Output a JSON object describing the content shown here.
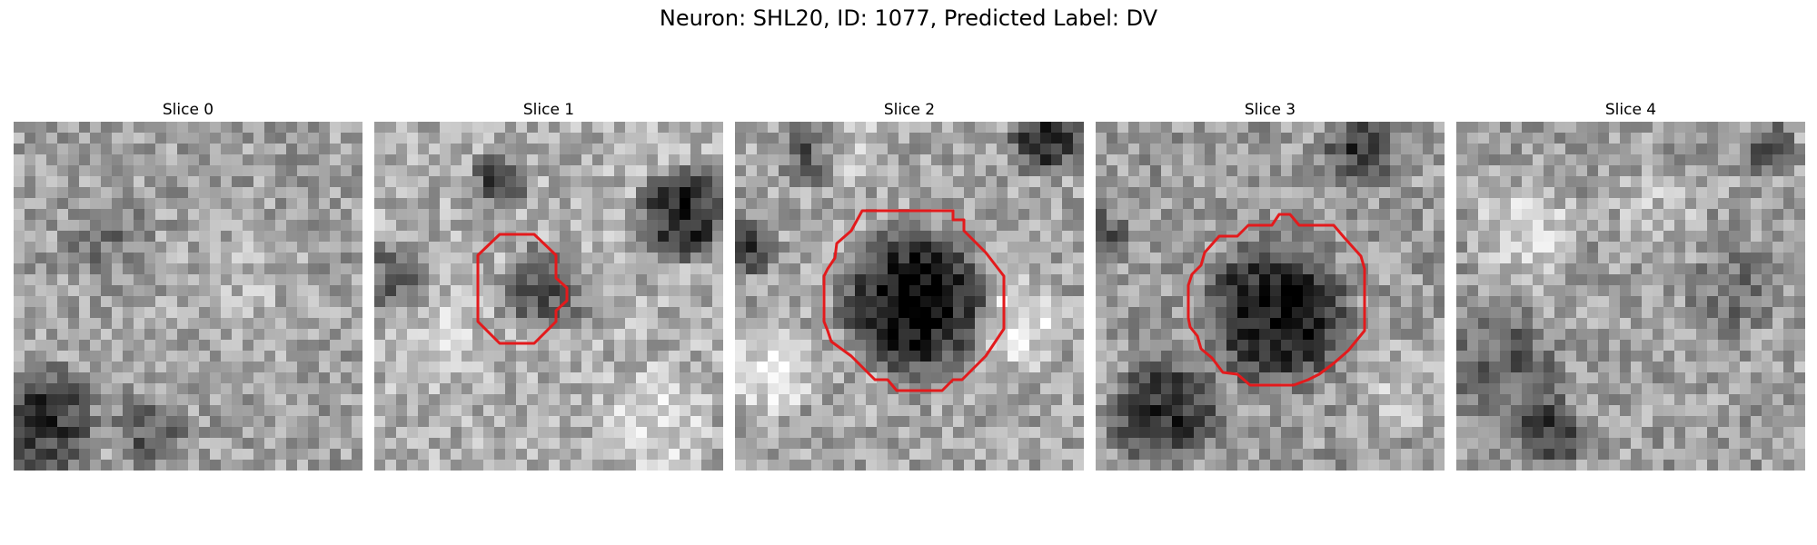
{
  "figure": {
    "title": "Neuron: SHL20, ID: 1077, Predicted Label: DV"
  },
  "panels": [
    {
      "title": "Slice 0",
      "has_contour": false
    },
    {
      "title": "Slice 1",
      "has_contour": true
    },
    {
      "title": "Slice 2",
      "has_contour": true
    },
    {
      "title": "Slice 3",
      "has_contour": true
    },
    {
      "title": "Slice 4",
      "has_contour": false
    }
  ],
  "colors": {
    "contour": "#e31a1c",
    "background": "#ffffff"
  },
  "colormap": "gray"
}
